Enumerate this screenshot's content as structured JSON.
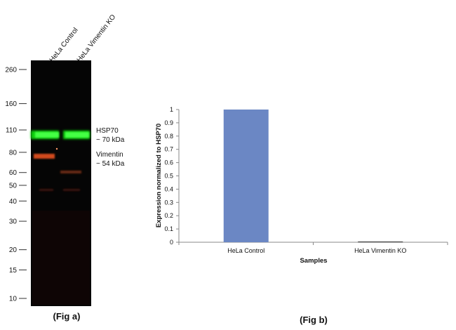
{
  "fig_a": {
    "caption": "(Fig a)",
    "lanes": [
      "HeLa Control",
      "HeLa Vimentin KO"
    ],
    "markers": [
      "260",
      "160",
      "110",
      "80",
      "60",
      "50",
      "40",
      "30",
      "20",
      "15",
      "10"
    ],
    "bands": [
      {
        "name": "HSP70",
        "size": "~ 70 kDa",
        "color": "#20e020"
      },
      {
        "name": "Vimentin",
        "size": "~ 54 kDa",
        "color": "#e05a2a"
      }
    ]
  },
  "fig_b": {
    "caption": "(Fig b)"
  },
  "chart_data": {
    "type": "bar",
    "categories": [
      "HeLa Control",
      "HeLa Vimentin KO"
    ],
    "values": [
      1,
      0
    ],
    "xlabel": "Samples",
    "ylabel": "Expression  normalized to HSP70",
    "ylim": [
      0,
      1
    ],
    "yticks": [
      "0",
      "0.1",
      "0.2",
      "0.3",
      "0.4",
      "0.5",
      "0.6",
      "0.7",
      "0.8",
      "0.9",
      "1"
    ],
    "bar_color": "#6b87c4",
    "grid": false,
    "legend": "none"
  }
}
